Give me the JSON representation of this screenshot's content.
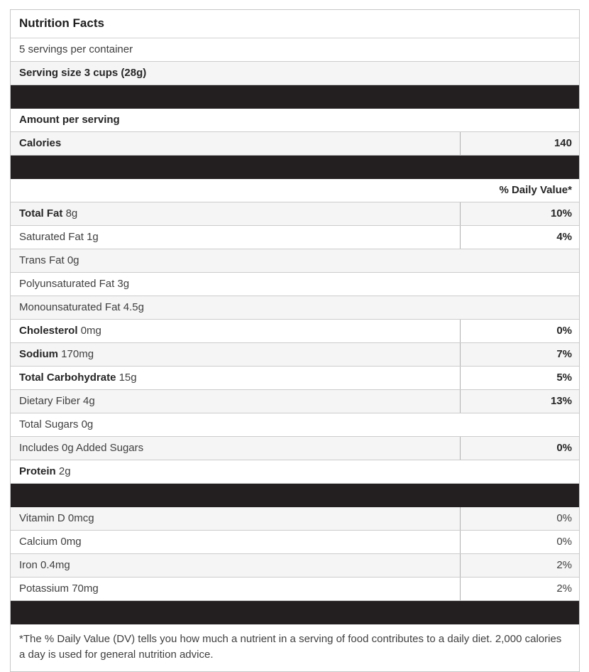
{
  "label": {
    "title": "Nutrition Facts",
    "servings_per_container": "5 servings per container",
    "serving_size": "Serving size 3 cups (28g)",
    "amount_per_serving": "Amount per serving",
    "calories_label": "Calories",
    "calories_value": "140",
    "daily_value_header": "% Daily Value*",
    "footnote": "*The % Daily Value (DV) tells you how much a nutrient in a serving of food contributes to a daily diet. 2,000 calories a day is used for general nutrition advice.",
    "colors": {
      "separator_bar": "#231f20",
      "row_stripe": "#f5f5f6",
      "row_border": "#cccccc",
      "column_divider": "#b0b0b0",
      "text": "#3f3f3f",
      "bold_text": "#262626"
    }
  },
  "nutrients": [
    {
      "name": "Total Fat",
      "amount": "8g",
      "dv": "10%"
    },
    {
      "name": "Saturated Fat",
      "amount": "1g",
      "dv": "4%"
    },
    {
      "name": "Trans Fat",
      "amount": "0g",
      "dv": ""
    },
    {
      "name": "Polyunsaturated Fat",
      "amount": "3g",
      "dv": ""
    },
    {
      "name": "Monounsaturated Fat",
      "amount": "4.5g",
      "dv": ""
    },
    {
      "name": "Cholesterol",
      "amount": "0mg",
      "dv": "0%"
    },
    {
      "name": "Sodium",
      "amount": "170mg",
      "dv": "7%"
    },
    {
      "name": "Total Carbohydrate",
      "amount": "15g",
      "dv": "5%"
    },
    {
      "name": "Dietary Fiber",
      "amount": "4g",
      "dv": "13%"
    },
    {
      "name": "Total Sugars",
      "amount": "0g",
      "dv": ""
    },
    {
      "name": "Includes 0g Added Sugars",
      "amount": "",
      "dv": "0%"
    },
    {
      "name": "Protein",
      "amount": "2g",
      "dv": ""
    }
  ],
  "vitamins": [
    {
      "name": "Vitamin D",
      "amount": "0mcg",
      "dv": "0%"
    },
    {
      "name": "Calcium",
      "amount": "0mg",
      "dv": "0%"
    },
    {
      "name": "Iron",
      "amount": "0.4mg",
      "dv": "2%"
    },
    {
      "name": "Potassium",
      "amount": "70mg",
      "dv": "2%"
    }
  ]
}
